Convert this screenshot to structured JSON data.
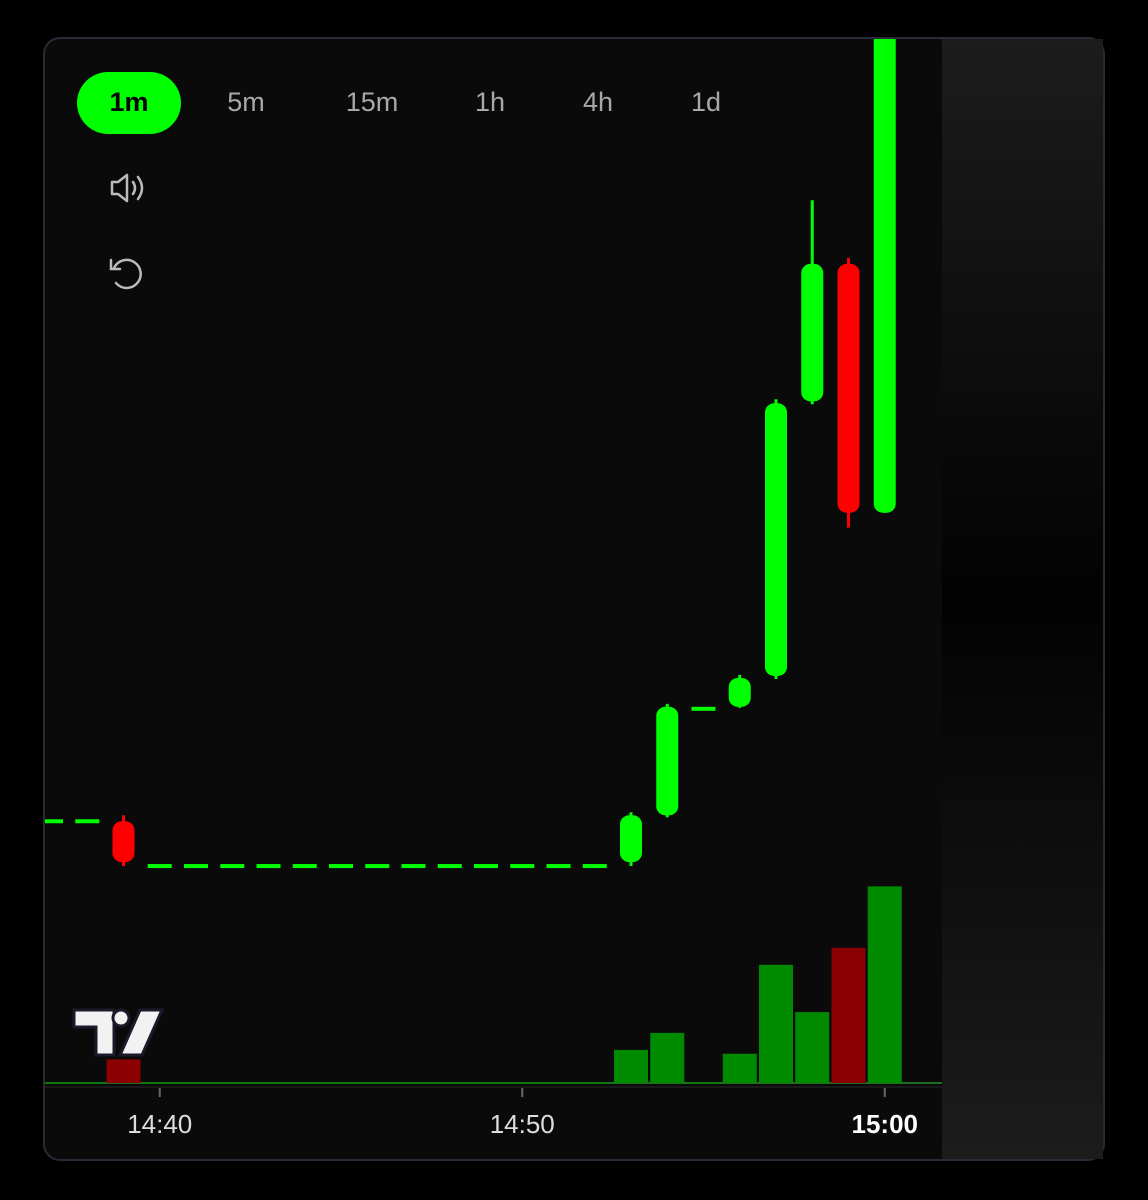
{
  "toolbar": {
    "timeframes": [
      "1m",
      "5m",
      "15m",
      "1h",
      "4h",
      "1d"
    ],
    "active": 0
  },
  "chart_data": {
    "type": "candlestick",
    "x": [
      null,
      null,
      null,
      "14:40",
      null,
      null,
      null,
      null,
      null,
      null,
      null,
      null,
      null,
      "14:50",
      null,
      null,
      null,
      null,
      null,
      null,
      null,
      null,
      null,
      "15:00"
    ],
    "open": [
      26.5,
      26.5,
      26.5,
      22.0,
      22.0,
      22.0,
      22.0,
      22.0,
      22.0,
      22.0,
      22.0,
      22.0,
      22.0,
      22.0,
      22.0,
      22.0,
      22.4,
      27.1,
      37.8,
      38.0,
      41.1,
      68.7,
      82.5,
      57.5
    ],
    "high": [
      26.5,
      26.5,
      27.1,
      22.0,
      22.0,
      22.0,
      22.0,
      22.0,
      22.0,
      22.0,
      22.0,
      22.0,
      22.0,
      22.0,
      22.0,
      22.0,
      27.4,
      38.3,
      37.8,
      41.2,
      68.9,
      88.9,
      83.1,
      110
    ],
    "low": [
      26.5,
      26.5,
      22.0,
      22.0,
      22.0,
      22.0,
      22.0,
      22.0,
      22.0,
      22.0,
      22.0,
      22.0,
      22.0,
      22.0,
      22.0,
      22.0,
      22.0,
      26.9,
      37.8,
      37.9,
      40.8,
      68.4,
      56.0,
      57.5
    ],
    "close": [
      26.5,
      26.5,
      22.4,
      22.0,
      22.0,
      22.0,
      22.0,
      22.0,
      22.0,
      22.0,
      22.0,
      22.0,
      22.0,
      22.0,
      22.0,
      22.0,
      27.1,
      38.0,
      37.8,
      40.9,
      68.5,
      82.5,
      57.5,
      110
    ],
    "volume": [
      0,
      0,
      25,
      0,
      0,
      0,
      0,
      0,
      0,
      0,
      0,
      0,
      0,
      0,
      0,
      0,
      35,
      53,
      0,
      31,
      125,
      75,
      143,
      208
    ],
    "ylim": [
      0,
      105
    ],
    "volume_lim": [
      0,
      220
    ],
    "up_color": "#00ff00",
    "down_color": "#ff0000",
    "volume_up_color": "#008a00",
    "volume_down_color": "#8b0000"
  }
}
